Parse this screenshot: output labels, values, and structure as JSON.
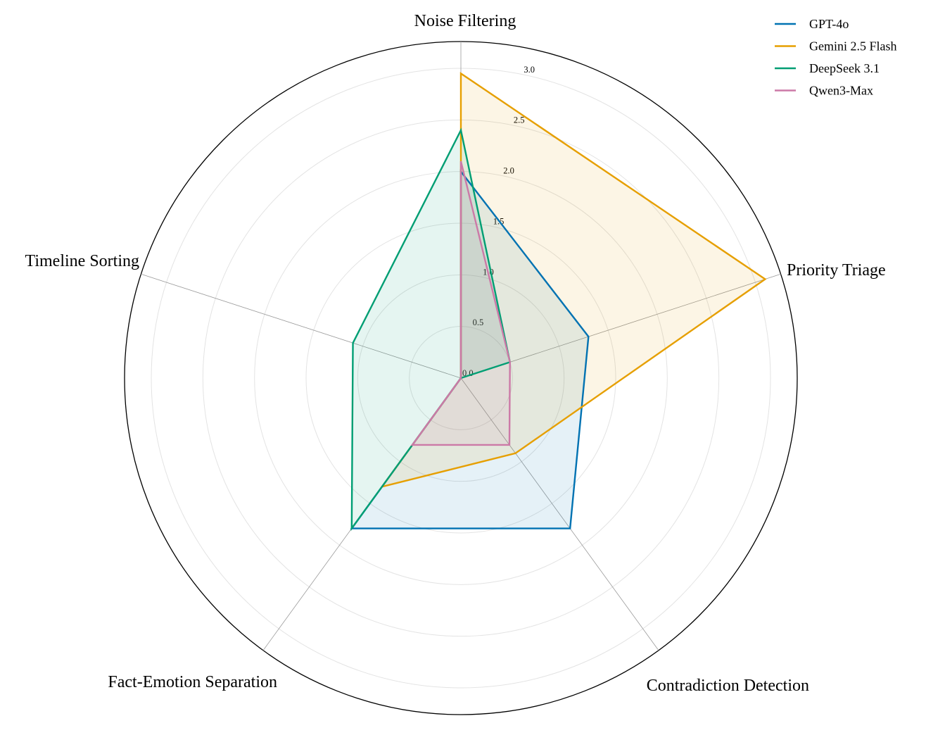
{
  "chart_data": {
    "type": "radar",
    "axes": [
      "Noise Filtering",
      "Priority Triage",
      "Contradiction Detection",
      "Fact-Emotion Separation",
      "Timeline Sorting"
    ],
    "rlim": [
      0,
      3.0
    ],
    "r_ticks": [
      "0.0",
      "0.5",
      "1.0",
      "1.5",
      "2.0",
      "2.5",
      "3.0"
    ],
    "grid": true,
    "legend_position": "top-right",
    "series": [
      {
        "name": "GPT-4o",
        "color": "#0072B2",
        "values": [
          2.0,
          1.3,
          1.8,
          1.8,
          0.0
        ]
      },
      {
        "name": "Gemini 2.5 Flash",
        "color": "#E69F00",
        "values": [
          2.95,
          3.1,
          0.9,
          1.3,
          0.0
        ]
      },
      {
        "name": "DeepSeek 3.1",
        "color": "#009E73",
        "values": [
          2.4,
          0.5,
          0.0,
          1.8,
          1.1
        ]
      },
      {
        "name": "Qwen3-Max",
        "color": "#CC79A7",
        "values": [
          2.1,
          0.5,
          0.8,
          0.8,
          0.0
        ]
      }
    ]
  }
}
